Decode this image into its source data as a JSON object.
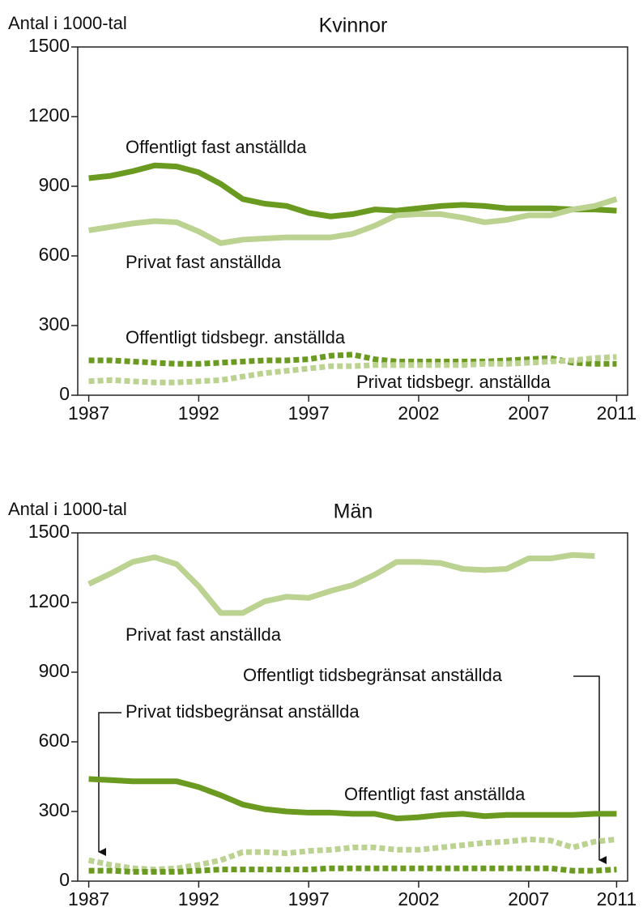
{
  "chart_data": [
    {
      "type": "line",
      "title": "Kvinnor",
      "y_label": "Antal i 1000-tal",
      "x": [
        1987,
        1988,
        1989,
        1990,
        1991,
        1992,
        1993,
        1994,
        1995,
        1996,
        1997,
        1998,
        1999,
        2000,
        2001,
        2002,
        2003,
        2004,
        2005,
        2006,
        2007,
        2008,
        2009,
        2010,
        2011
      ],
      "xlim": [
        1986.5,
        2011.5
      ],
      "xticks": [
        1987,
        1992,
        1997,
        2002,
        2007,
        2011
      ],
      "ylim": [
        0,
        1500
      ],
      "yticks": [
        0,
        300,
        600,
        900,
        1200,
        1500
      ],
      "series": [
        {
          "name": "Offentligt fast anställda",
          "color": "#6a9a1f",
          "dashed": false,
          "values": [
            935,
            945,
            965,
            990,
            985,
            960,
            910,
            845,
            825,
            815,
            785,
            770,
            780,
            800,
            795,
            805,
            815,
            820,
            815,
            805,
            805,
            805,
            800,
            800,
            795
          ]
        },
        {
          "name": "Privat fast anställda",
          "color": "#bcd291",
          "dashed": false,
          "values": [
            710,
            725,
            740,
            750,
            745,
            705,
            655,
            670,
            675,
            680,
            680,
            680,
            695,
            730,
            775,
            780,
            780,
            765,
            745,
            755,
            775,
            775,
            800,
            815,
            845
          ]
        },
        {
          "name": "Offentligt tidsbegr. anställda",
          "color": "#6a9a1f",
          "dashed": true,
          "values": [
            150,
            150,
            145,
            140,
            135,
            135,
            140,
            145,
            150,
            150,
            155,
            170,
            175,
            155,
            145,
            145,
            145,
            145,
            145,
            150,
            155,
            160,
            140,
            135,
            135
          ]
        },
        {
          "name": "Privat tidsbegr. anställda",
          "color": "#bcd291",
          "dashed": true,
          "values": [
            60,
            65,
            60,
            55,
            55,
            60,
            65,
            80,
            95,
            105,
            115,
            125,
            125,
            130,
            130,
            130,
            130,
            130,
            135,
            135,
            140,
            145,
            150,
            160,
            165
          ]
        }
      ]
    },
    {
      "type": "line",
      "title": "Män",
      "y_label": "Antal i 1000-tal",
      "x": [
        1987,
        1988,
        1989,
        1990,
        1991,
        1992,
        1993,
        1994,
        1995,
        1996,
        1997,
        1998,
        1999,
        2000,
        2001,
        2002,
        2003,
        2004,
        2005,
        2006,
        2007,
        2008,
        2009,
        2010,
        2011
      ],
      "xlim": [
        1986.5,
        2011.5
      ],
      "xticks": [
        1987,
        1992,
        1997,
        2002,
        2007,
        2011
      ],
      "ylim": [
        0,
        1500
      ],
      "yticks": [
        0,
        300,
        600,
        900,
        1200,
        1500
      ],
      "series": [
        {
          "name": "Privat fast anställda",
          "color": "#bcd291",
          "dashed": false,
          "values": [
            1280,
            1325,
            1375,
            1395,
            1365,
            1270,
            1155,
            1155,
            1205,
            1225,
            1220,
            1250,
            1275,
            1320,
            1375,
            1375,
            1370,
            1345,
            1340,
            1345,
            1390,
            1390,
            1405,
            1400,
            null
          ]
        },
        {
          "name": "Offentligt fast anställda",
          "color": "#6a9a1f",
          "dashed": false,
          "values": [
            440,
            435,
            430,
            430,
            430,
            405,
            370,
            330,
            310,
            300,
            295,
            295,
            290,
            290,
            270,
            275,
            285,
            290,
            280,
            285,
            285,
            285,
            285,
            290,
            290
          ]
        },
        {
          "name": "Privat tidsbegränsat anställda",
          "color": "#bcd291",
          "dashed": true,
          "values": [
            90,
            70,
            55,
            50,
            55,
            70,
            90,
            125,
            125,
            120,
            130,
            135,
            145,
            145,
            135,
            135,
            145,
            155,
            165,
            170,
            180,
            175,
            145,
            170,
            180
          ]
        },
        {
          "name": "Offentligt tidsbegränsat anställda",
          "color": "#6a9a1f",
          "dashed": true,
          "values": [
            45,
            45,
            40,
            40,
            40,
            45,
            50,
            50,
            50,
            50,
            50,
            55,
            55,
            55,
            55,
            55,
            55,
            55,
            55,
            55,
            55,
            55,
            45,
            45,
            50
          ]
        }
      ]
    }
  ]
}
